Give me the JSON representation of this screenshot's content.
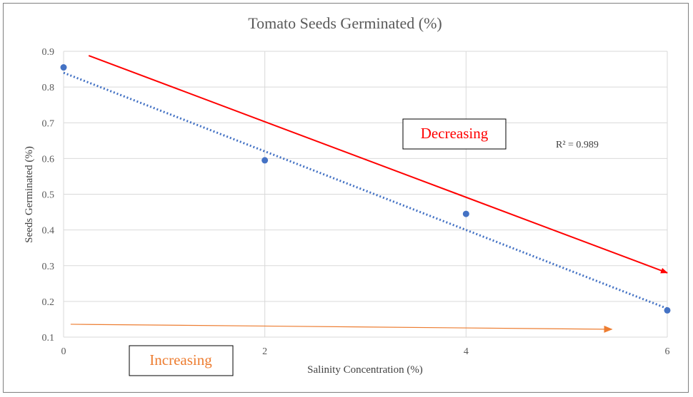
{
  "chart_data": {
    "type": "scatter",
    "title": "Tomato Seeds Germinated (%)",
    "xlabel": "Salinity Concentration (%)",
    "ylabel": "Seeds Germinated (%)",
    "xlim": [
      0,
      6
    ],
    "ylim": [
      0.1,
      0.9
    ],
    "x_ticks": [
      "0",
      "2",
      "4",
      "6"
    ],
    "y_ticks": [
      "0.1",
      "0.2",
      "0.3",
      "0.4",
      "0.5",
      "0.6",
      "0.7",
      "0.8",
      "0.9"
    ],
    "grid": true,
    "series": [
      {
        "color": "#4472c4",
        "x": [
          0,
          2,
          4,
          6
        ],
        "y": [
          0.855,
          0.595,
          0.445,
          0.175
        ]
      }
    ],
    "trendline": {
      "style": "dotted",
      "color": "#4472c4",
      "x": [
        0,
        6
      ],
      "y": [
        0.84,
        0.18
      ],
      "r_squared_label": "R² = 0.989"
    },
    "annotations": [
      {
        "text": "Decreasing",
        "color": "#ff0000"
      },
      {
        "text": "Increasing",
        "color": "#ed7d31"
      }
    ],
    "arrows": [
      {
        "color": "#ff0000",
        "from": [
          0.25,
          0.888
        ],
        "to": [
          6,
          0.28
        ]
      },
      {
        "color": "#ed7d31",
        "from": [
          0.07,
          0.136
        ],
        "to": [
          5.45,
          0.122
        ]
      }
    ]
  }
}
